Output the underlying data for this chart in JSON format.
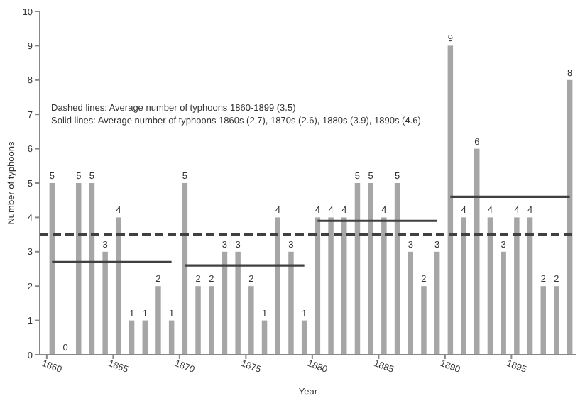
{
  "chart_data": {
    "type": "bar",
    "xlabel": "Year",
    "ylabel": "Number of typhoons",
    "annotations": [
      "Dashed lines: Average number of typhoons 1860-1899 (3.5)",
      "Solid lines: Average number of typhoons 1860s (2.7), 1870s (2.6), 1880s (3.9), 1890s (4.6)"
    ],
    "categories": [
      "1860",
      null,
      null,
      null,
      null,
      "1865",
      null,
      null,
      null,
      null,
      "1870",
      null,
      null,
      null,
      null,
      "1875",
      null,
      null,
      null,
      null,
      "1880",
      null,
      null,
      null,
      null,
      "1885",
      null,
      null,
      null,
      null,
      "1890",
      null,
      null,
      null,
      null,
      "1895",
      null,
      null,
      null,
      null
    ],
    "series": [
      {
        "color": "#a6a6a6",
        "values": [
          5,
          0,
          5,
          5,
          3,
          4,
          1,
          1,
          2,
          1,
          5,
          2,
          2,
          3,
          3,
          2,
          1,
          4,
          3,
          1,
          4,
          4,
          4,
          5,
          5,
          4,
          5,
          3,
          2,
          3,
          9,
          4,
          6,
          4,
          3,
          4,
          4,
          2,
          2,
          8
        ],
        "value_labels": [
          "5",
          "0",
          "5",
          "5",
          "3",
          "4",
          "1",
          "1",
          "2",
          "1",
          "5",
          "2",
          "2",
          "3",
          "3",
          "2",
          "1",
          "4",
          "3",
          "1",
          "4",
          "4",
          "4",
          "5",
          "5",
          "4",
          "5",
          "3",
          "2",
          "3",
          "9",
          "4",
          "6",
          "4",
          "3",
          "4",
          "4",
          "2",
          "2",
          "8"
        ]
      },
      {
        "type": "line",
        "color": "#404040",
        "values": [
          2.7,
          2.7,
          2.7,
          2.7,
          2.7,
          2.7,
          2.7,
          2.7,
          2.7,
          2.7,
          null,
          null,
          null,
          null,
          null,
          null,
          null,
          null,
          null,
          null,
          null,
          null,
          null,
          null,
          null,
          null,
          null,
          null,
          null,
          null,
          null,
          null,
          null,
          null,
          null,
          null,
          null,
          null,
          null,
          null
        ]
      },
      {
        "type": "line",
        "color": "#404040",
        "values": [
          null,
          null,
          null,
          null,
          null,
          null,
          null,
          null,
          null,
          null,
          2.6,
          2.6,
          2.6,
          2.6,
          2.6,
          2.6,
          2.6,
          2.6,
          2.6,
          2.6,
          null,
          null,
          null,
          null,
          null,
          null,
          null,
          null,
          null,
          null,
          null,
          null,
          null,
          null,
          null,
          null,
          null,
          null,
          null,
          null
        ]
      },
      {
        "type": "line",
        "color": "#404040",
        "values": [
          null,
          null,
          null,
          null,
          null,
          null,
          null,
          null,
          null,
          null,
          null,
          null,
          null,
          null,
          null,
          null,
          null,
          null,
          null,
          null,
          3.9,
          3.9,
          3.9,
          3.9,
          3.9,
          3.9,
          3.9,
          3.9,
          3.9,
          3.9,
          null,
          null,
          null,
          null,
          null,
          null,
          null,
          null,
          null,
          null
        ]
      },
      {
        "type": "line",
        "color": "#404040",
        "values": [
          null,
          null,
          null,
          null,
          null,
          null,
          null,
          null,
          null,
          null,
          null,
          null,
          null,
          null,
          null,
          null,
          null,
          null,
          null,
          null,
          null,
          null,
          null,
          null,
          null,
          null,
          null,
          null,
          null,
          null,
          4.6,
          4.6,
          4.6,
          4.6,
          4.6,
          4.6,
          4.6,
          4.6,
          4.6,
          4.6
        ]
      }
    ],
    "ref_lines": [
      {
        "axis": "y",
        "value": 3.5,
        "color": "#404040",
        "line_style": "dashed"
      }
    ],
    "ylim": [
      0,
      10
    ],
    "yticks": [
      0,
      1,
      2,
      3,
      4,
      5,
      6,
      7,
      8,
      9,
      10
    ],
    "grid": false,
    "marker": "none",
    "line_style": "solid"
  }
}
